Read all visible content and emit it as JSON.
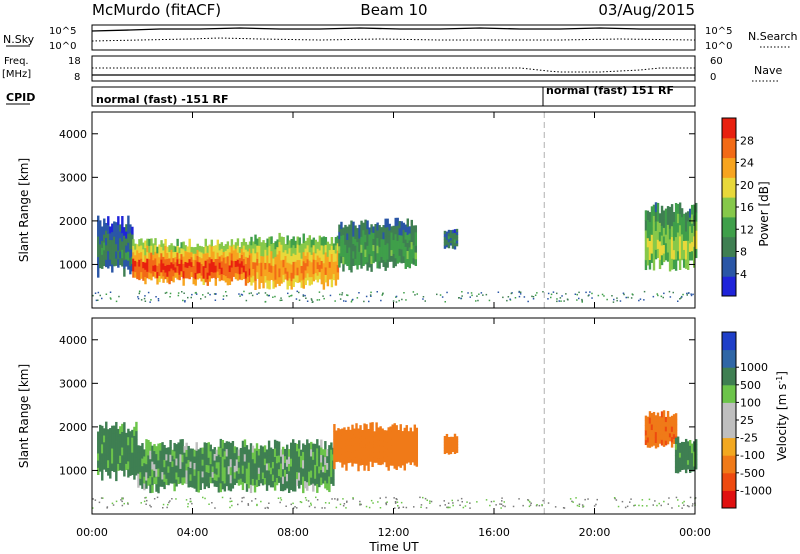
{
  "header": {
    "station": "McMurdo (fitACF)",
    "beam": "Beam 10",
    "date": "03/Aug/2015"
  },
  "top_panels": {
    "nsky_label": "N.Sky",
    "nsky_ticks": [
      "10^5",
      "10^0"
    ],
    "nsearch_label": "N.Search",
    "nsearch_ticks": [
      "10^5",
      "10^0"
    ],
    "freq_label": "Freq.",
    "freq_unit": "[MHz]",
    "freq_ticks": [
      "18",
      "8"
    ],
    "nave_label": "Nave",
    "nave_ticks": [
      "60",
      "0"
    ],
    "cpid_label": "CPID",
    "cpid_segments": [
      "normal (fast) -151 RF",
      "normal (fast) 151 RF"
    ]
  },
  "colors": {
    "power": [
      "#1f24d9",
      "#2a56a6",
      "#3f7f52",
      "#3f9f4a",
      "#86c84a",
      "#e8d83a",
      "#f7a41f",
      "#f26a16",
      "#e8200f"
    ],
    "velocity": [
      "#e01010",
      "#ee4a10",
      "#f07a18",
      "#f2a820",
      "#bfbfbf",
      "#bfbfbf",
      "#6cc44a",
      "#3f7f52",
      "#2f66a6",
      "#1f3fc8"
    ],
    "gate_scatter": "#7a7a7a",
    "dash_line": "#b0b0b0"
  },
  "chart_data": [
    {
      "type": "heatmap",
      "panel": "power",
      "x_tick_labels": [
        "00:00",
        "04:00",
        "08:00",
        "12:00",
        "16:00",
        "20:00",
        "00:00"
      ],
      "xlim_hours": [
        0,
        24
      ],
      "xlabel": "Time UT",
      "ylabel": "Slant Range [km]",
      "ylim": [
        0,
        4500
      ],
      "y_ticks": [
        1000,
        2000,
        3000,
        4000
      ],
      "marker_line_hour": 18,
      "colorbar": {
        "label": "Power [dB]",
        "ticks": [
          4,
          8,
          12,
          16,
          20,
          24,
          28
        ],
        "range": [
          0,
          32
        ]
      },
      "echo_regions": [
        {
          "t0": 0.2,
          "t1": 1.6,
          "r0": 850,
          "r1": 2000,
          "value": 9
        },
        {
          "t0": 1.6,
          "t1": 6.3,
          "r0": 620,
          "r1": 1500,
          "value": 30
        },
        {
          "t0": 6.3,
          "t1": 9.8,
          "r0": 550,
          "r1": 1600,
          "value": 26
        },
        {
          "t0": 9.8,
          "t1": 12.9,
          "r0": 950,
          "r1": 1950,
          "value": 13
        },
        {
          "t0": 14.0,
          "t1": 14.5,
          "r0": 1400,
          "r1": 1800,
          "value": 10
        },
        {
          "t0": 22.0,
          "t1": 24.0,
          "r0": 1000,
          "r1": 2300,
          "value": 18
        }
      ]
    },
    {
      "type": "heatmap",
      "panel": "velocity",
      "x_tick_labels": [
        "00:00",
        "04:00",
        "08:00",
        "12:00",
        "16:00",
        "20:00",
        "00:00"
      ],
      "xlim_hours": [
        0,
        24
      ],
      "xlabel": "Time UT",
      "ylabel": "Slant Range [km]",
      "ylim": [
        0,
        4500
      ],
      "y_ticks": [
        1000,
        2000,
        3000,
        4000
      ],
      "marker_line_hour": 18,
      "colorbar": {
        "label": "Velocity [m s^-1]",
        "ticks": [
          -1000,
          -500,
          -100,
          -25,
          25,
          100,
          500,
          1000
        ],
        "tick_labels": [
          "-1000",
          "-500",
          "-100",
          "-25",
          "25",
          "100",
          "500",
          "1000"
        ]
      },
      "echo_regions": [
        {
          "t0": 0.2,
          "t1": 1.8,
          "r0": 900,
          "r1": 2000,
          "value": 200
        },
        {
          "t0": 1.8,
          "t1": 9.6,
          "r0": 600,
          "r1": 1600,
          "value": 150
        },
        {
          "t0": 9.6,
          "t1": 12.9,
          "r0": 1100,
          "r1": 2000,
          "value": -300
        },
        {
          "t0": 14.0,
          "t1": 14.5,
          "r0": 1400,
          "r1": 1800,
          "value": -300
        },
        {
          "t0": 22.0,
          "t1": 23.2,
          "r0": 1600,
          "r1": 2300,
          "value": -400
        },
        {
          "t0": 23.2,
          "t1": 24.0,
          "r0": 1000,
          "r1": 1700,
          "value": 200
        }
      ]
    }
  ]
}
